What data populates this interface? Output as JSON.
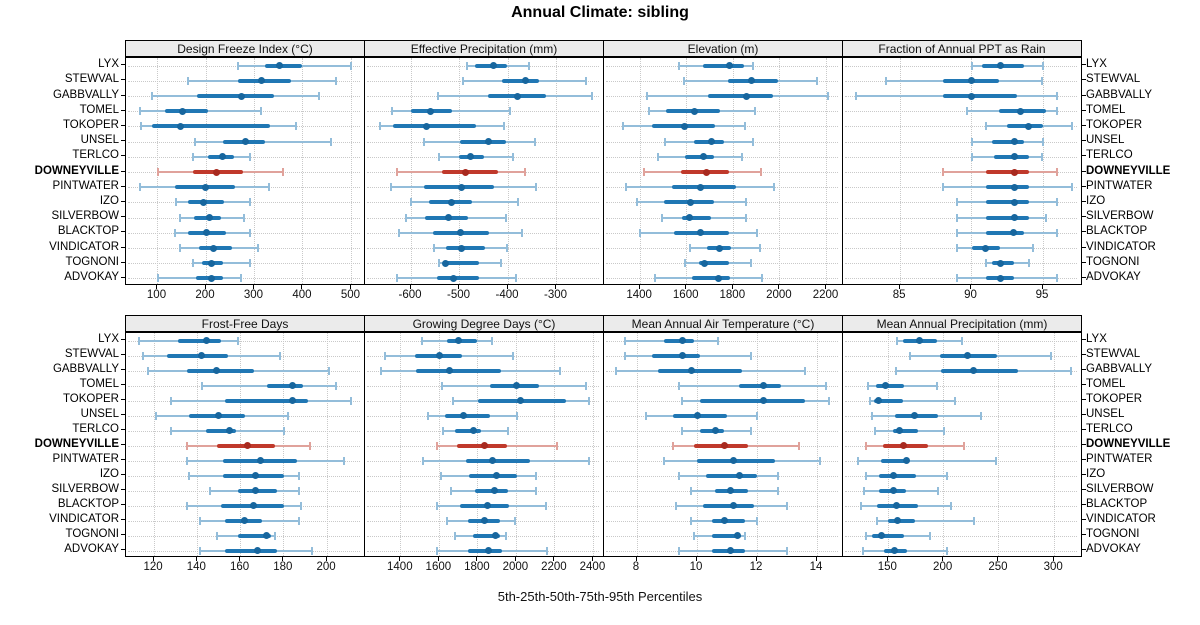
{
  "chart_data": {
    "type": "dotplot",
    "title": "Annual Climate: sibling",
    "caption": "5th-25th-50th-75th-95th Percentiles",
    "percentiles": [
      5,
      25,
      50,
      75,
      95
    ],
    "legend_position": "none",
    "grid": "dotted",
    "stations": [
      "LYX",
      "STEWVAL",
      "GABBVALLY",
      "TOMEL",
      "TOKOPER",
      "UNSEL",
      "TERLCO",
      "DOWNEYVILLE",
      "PINTWATER",
      "IZO",
      "SILVERBOW",
      "BLACKTOP",
      "VINDICATOR",
      "TOGNONI",
      "ADVOKAY"
    ],
    "highlight_station": "DOWNEYVILLE",
    "colors": {
      "blue": "#2077b4",
      "blue_light": "#93bdda",
      "blue_dark": "#17669e",
      "red": "#c0392b",
      "red_light": "#e0a29b",
      "red_dark": "#a82a1f",
      "strip_bg": "#ebebeb",
      "grid": "#c9c9c9"
    },
    "panels": [
      {
        "title": "Design Freeze Index (°C)",
        "grid_row": "top",
        "ticks": [
          100,
          200,
          300,
          400,
          500
        ],
        "xlim": [
          35,
          530
        ],
        "values": [
          [
            267,
            321,
            352,
            399,
            499
          ],
          [
            162,
            267,
            314,
            376,
            468
          ],
          [
            88,
            182,
            273,
            340,
            434
          ],
          [
            63,
            116,
            152,
            205,
            314
          ],
          [
            65,
            88,
            148,
            333,
            385
          ],
          [
            177,
            235,
            282,
            321,
            457
          ],
          [
            173,
            204,
            235,
            257,
            290
          ],
          [
            100,
            173,
            221,
            276,
            359
          ],
          [
            63,
            137,
            198,
            259,
            330
          ],
          [
            138,
            162,
            195,
            238,
            290
          ],
          [
            146,
            176,
            207,
            231,
            279
          ],
          [
            137,
            162,
            200,
            242,
            290
          ],
          [
            146,
            185,
            216,
            254,
            307
          ],
          [
            173,
            192,
            211,
            235,
            290
          ],
          [
            101,
            179,
            212,
            235,
            273
          ]
        ]
      },
      {
        "title": "Effective Precipitation (mm)",
        "grid_row": "top",
        "ticks": [
          -600,
          -500,
          -400,
          -300
        ],
        "xlim": [
          -695,
          -200
        ],
        "values": [
          [
            -485,
            -469,
            -431,
            -402,
            -357
          ],
          [
            -492,
            -412,
            -364,
            -336,
            -239
          ],
          [
            -545,
            -442,
            -381,
            -322,
            -227
          ],
          [
            -640,
            -601,
            -559,
            -516,
            -395
          ],
          [
            -665,
            -637,
            -568,
            -467,
            -409
          ],
          [
            -573,
            -499,
            -440,
            -405,
            -345
          ],
          [
            -543,
            -502,
            -478,
            -449,
            -389
          ],
          [
            -630,
            -536,
            -488,
            -421,
            -364
          ],
          [
            -642,
            -573,
            -497,
            -428,
            -343
          ],
          [
            -601,
            -564,
            -516,
            -474,
            -380
          ],
          [
            -610,
            -571,
            -523,
            -483,
            -405
          ],
          [
            -624,
            -554,
            -499,
            -440,
            -371
          ],
          [
            -552,
            -527,
            -497,
            -447,
            -402
          ],
          [
            -543,
            -534,
            -530,
            -460,
            -414
          ],
          [
            -628,
            -547,
            -513,
            -460,
            -384
          ]
        ]
      },
      {
        "title": "Elevation (m)",
        "grid_row": "top",
        "ticks": [
          1400,
          1600,
          1800,
          2000,
          2200
        ],
        "xlim": [
          1245,
          2275
        ],
        "values": [
          [
            1565,
            1670,
            1785,
            1845,
            1885
          ],
          [
            1588,
            1776,
            1880,
            1990,
            2160
          ],
          [
            1430,
            1690,
            1855,
            1970,
            2205
          ],
          [
            1440,
            1513,
            1633,
            1744,
            1893
          ],
          [
            1325,
            1450,
            1590,
            1720,
            1850
          ],
          [
            1508,
            1633,
            1707,
            1758,
            1883
          ],
          [
            1476,
            1592,
            1670,
            1717,
            1838
          ],
          [
            1415,
            1574,
            1685,
            1782,
            1920
          ],
          [
            1338,
            1536,
            1660,
            1810,
            1976
          ],
          [
            1388,
            1504,
            1615,
            1717,
            1855
          ],
          [
            1494,
            1578,
            1610,
            1703,
            1855
          ],
          [
            1400,
            1546,
            1657,
            1782,
            1900
          ],
          [
            1615,
            1689,
            1740,
            1790,
            1915
          ],
          [
            1592,
            1651,
            1675,
            1782,
            1874
          ],
          [
            1463,
            1624,
            1735,
            1786,
            1925
          ]
        ]
      },
      {
        "title": "Fraction of Annual PPT as Rain",
        "grid_row": "top",
        "ticks": [
          85,
          90,
          95
        ],
        "xlim": [
          81,
          97.8
        ],
        "values": [
          [
            90,
            90.7,
            92,
            93.7,
            95
          ],
          [
            84,
            88,
            90,
            91.9,
            94.9
          ],
          [
            81.9,
            88,
            90,
            93.2,
            96
          ],
          [
            89.7,
            91.9,
            93.4,
            95.2,
            96
          ],
          [
            91,
            92.5,
            94,
            95,
            97
          ],
          [
            90,
            91.4,
            93,
            93.7,
            95
          ],
          [
            90,
            91.6,
            93,
            94,
            94.9
          ],
          [
            88,
            91,
            93,
            94,
            96
          ],
          [
            88,
            91,
            93,
            94,
            97
          ],
          [
            89,
            91,
            93,
            94,
            96
          ],
          [
            89,
            91,
            93,
            94,
            95.2
          ],
          [
            89,
            91,
            92.9,
            93.7,
            96
          ],
          [
            89,
            90,
            91,
            92,
            94.3
          ],
          [
            91,
            91.4,
            92,
            93,
            94
          ],
          [
            89,
            91,
            92,
            93,
            96
          ]
        ]
      },
      {
        "title": "Frost-Free Days",
        "grid_row": "bottom",
        "ticks": [
          120,
          140,
          160,
          180,
          200
        ],
        "xlim": [
          107,
          218
        ],
        "values": [
          [
            113,
            131,
            144,
            151,
            159
          ],
          [
            115,
            126,
            142,
            154,
            178
          ],
          [
            117,
            135,
            149,
            166,
            201
          ],
          [
            142,
            172,
            184,
            189,
            204
          ],
          [
            128,
            153,
            184,
            191,
            211
          ],
          [
            121,
            136,
            150,
            162,
            182
          ],
          [
            128,
            144,
            155,
            158,
            180
          ],
          [
            135,
            149,
            163,
            176,
            192
          ],
          [
            135,
            152,
            169,
            186,
            208
          ],
          [
            136,
            152,
            167,
            180,
            187
          ],
          [
            146,
            159,
            167,
            177,
            187
          ],
          [
            135,
            151,
            166,
            180,
            188
          ],
          [
            141,
            153,
            162,
            170,
            187
          ],
          [
            149,
            159,
            172,
            174,
            176
          ],
          [
            141,
            153,
            168,
            177,
            193
          ]
        ]
      },
      {
        "title": "Growing Degree Days (°C)",
        "grid_row": "bottom",
        "ticks": [
          1400,
          1600,
          1800,
          2000,
          2200,
          2400
        ],
        "xlim": [
          1214,
          2460
        ],
        "values": [
          [
            1510,
            1640,
            1700,
            1795,
            1875
          ],
          [
            1318,
            1475,
            1603,
            1717,
            1980
          ],
          [
            1296,
            1478,
            1652,
            1918,
            2226
          ],
          [
            1614,
            1861,
            2003,
            2117,
            2362
          ],
          [
            1670,
            1800,
            2023,
            2257,
            2379
          ],
          [
            1539,
            1631,
            1725,
            1864,
            2005
          ],
          [
            1617,
            1683,
            1777,
            1817,
            1957
          ],
          [
            1588,
            1690,
            1835,
            1951,
            2212
          ],
          [
            1513,
            1739,
            1878,
            2073,
            2377
          ],
          [
            1609,
            1753,
            1896,
            2003,
            2104
          ],
          [
            1661,
            1783,
            1887,
            1957,
            2101
          ],
          [
            1588,
            1708,
            1852,
            1962,
            2153
          ],
          [
            1638,
            1748,
            1835,
            1917,
            1991
          ],
          [
            1683,
            1777,
            1890,
            1913,
            1944
          ],
          [
            1586,
            1748,
            1856,
            1927,
            2157
          ]
        ]
      },
      {
        "title": "Mean Annual Air Temperature (°C)",
        "grid_row": "bottom",
        "ticks": [
          8,
          10,
          12,
          14
        ],
        "xlim": [
          6.9,
          14.9
        ],
        "values": [
          [
            7.6,
            8.9,
            9.5,
            9.9,
            10.7
          ],
          [
            7.6,
            8.5,
            9.5,
            10.1,
            11.8
          ],
          [
            7.3,
            8.7,
            9.8,
            11.5,
            13.6
          ],
          [
            9.4,
            11.4,
            12.2,
            12.8,
            14.3
          ],
          [
            9.5,
            10.1,
            12.2,
            13.6,
            14.4
          ],
          [
            8.3,
            9.2,
            10.0,
            11.0,
            12.0
          ],
          [
            9.5,
            10.1,
            10.6,
            10.9,
            11.8
          ],
          [
            9.2,
            9.9,
            10.9,
            11.7,
            13.4
          ],
          [
            8.9,
            10.0,
            11.2,
            12.6,
            14.1
          ],
          [
            9.4,
            10.3,
            11.4,
            12.0,
            12.7
          ],
          [
            9.8,
            10.6,
            11.1,
            11.7,
            12.7
          ],
          [
            9.3,
            10.2,
            11.2,
            11.9,
            13.0
          ],
          [
            9.8,
            10.5,
            10.9,
            11.6,
            12.0
          ],
          [
            9.9,
            10.5,
            11.35,
            11.45,
            11.6
          ],
          [
            9.4,
            10.5,
            11.1,
            11.6,
            13.0
          ]
        ]
      },
      {
        "title": "Mean Annual Precipitation (mm)",
        "grid_row": "bottom",
        "ticks": [
          150,
          200,
          250,
          300
        ],
        "xlim": [
          109,
          326
        ],
        "values": [
          [
            158,
            163,
            178,
            194,
            217
          ],
          [
            170,
            197,
            222,
            248,
            297
          ],
          [
            157,
            198,
            227,
            267,
            315
          ],
          [
            132,
            139,
            147,
            164,
            194
          ],
          [
            133,
            137,
            141,
            163,
            210
          ],
          [
            135,
            156,
            174,
            195,
            234
          ],
          [
            138,
            154,
            160,
            177,
            200
          ],
          [
            130,
            145,
            164,
            186,
            218
          ],
          [
            123,
            143,
            166,
            169,
            247
          ],
          [
            130,
            142,
            155,
            175,
            203
          ],
          [
            128,
            142,
            155,
            166,
            195
          ],
          [
            125,
            140,
            157,
            177,
            207
          ],
          [
            140,
            150,
            158,
            174,
            227
          ],
          [
            130,
            135,
            144,
            164,
            188
          ],
          [
            127,
            146,
            156,
            167,
            203
          ]
        ]
      }
    ]
  }
}
